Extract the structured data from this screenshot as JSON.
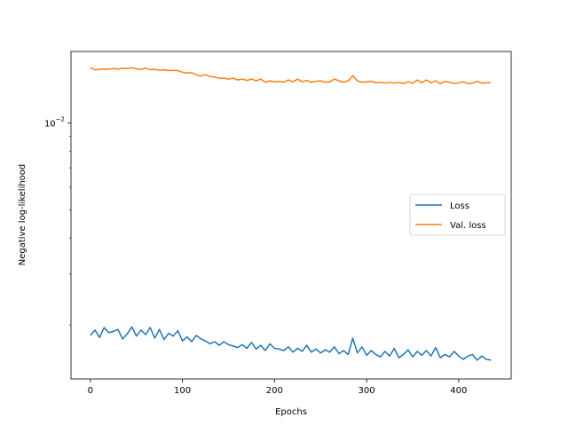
{
  "chart_data": {
    "type": "line",
    "title": "",
    "xlabel": "Epochs",
    "ylabel": "Negative log-likelihood",
    "yscale": "log",
    "xlim": [
      -21,
      457
    ],
    "ylim": [
      0.0013,
      0.0177
    ],
    "x_ticks": [
      {
        "value": 0,
        "label": "0"
      },
      {
        "value": 100,
        "label": "100"
      },
      {
        "value": 200,
        "label": "200"
      },
      {
        "value": 300,
        "label": "300"
      },
      {
        "value": 400,
        "label": "400"
      }
    ],
    "y_ticks": [
      {
        "value": 0.01,
        "base": "10",
        "exponent": "−2"
      }
    ],
    "grid": false,
    "legend_position": "center-right",
    "series": [
      {
        "name": "Loss",
        "color": "#1f77b4",
        "x": [
          0,
          5,
          10,
          15,
          20,
          25,
          30,
          35,
          40,
          45,
          50,
          55,
          60,
          65,
          70,
          75,
          80,
          85,
          90,
          95,
          100,
          105,
          110,
          115,
          120,
          125,
          130,
          135,
          140,
          145,
          150,
          155,
          160,
          165,
          170,
          175,
          180,
          185,
          190,
          195,
          200,
          205,
          210,
          215,
          220,
          225,
          230,
          235,
          240,
          245,
          250,
          255,
          260,
          265,
          270,
          275,
          280,
          285,
          290,
          295,
          300,
          305,
          310,
          315,
          320,
          325,
          330,
          335,
          340,
          345,
          350,
          355,
          360,
          365,
          370,
          375,
          380,
          385,
          390,
          395,
          400,
          405,
          410,
          415,
          420,
          425,
          430,
          435
        ],
        "values": [
          0.00184,
          0.00192,
          0.00181,
          0.00196,
          0.00188,
          0.0019,
          0.00193,
          0.00179,
          0.00186,
          0.00197,
          0.00183,
          0.00192,
          0.00185,
          0.00196,
          0.0018,
          0.00193,
          0.00178,
          0.00187,
          0.00183,
          0.00191,
          0.00176,
          0.00182,
          0.00175,
          0.00184,
          0.00179,
          0.00176,
          0.00172,
          0.00175,
          0.0017,
          0.00175,
          0.00171,
          0.00169,
          0.00167,
          0.00171,
          0.00166,
          0.00174,
          0.00165,
          0.0017,
          0.00163,
          0.00172,
          0.00166,
          0.00165,
          0.00163,
          0.00168,
          0.00161,
          0.00166,
          0.00162,
          0.0017,
          0.00161,
          0.00165,
          0.0016,
          0.00164,
          0.00161,
          0.00168,
          0.00159,
          0.00163,
          0.00158,
          0.0018,
          0.0016,
          0.00168,
          0.00157,
          0.00163,
          0.00158,
          0.00155,
          0.00162,
          0.00156,
          0.00166,
          0.00154,
          0.00158,
          0.00164,
          0.00155,
          0.00162,
          0.00157,
          0.00163,
          0.00156,
          0.00167,
          0.00154,
          0.00158,
          0.00155,
          0.00162,
          0.00156,
          0.00152,
          0.00156,
          0.00158,
          0.00151,
          0.00156,
          0.00152,
          0.00151
        ]
      },
      {
        "name": "Val. loss",
        "color": "#ff7f0e",
        "x": [
          0,
          5,
          10,
          15,
          20,
          25,
          30,
          35,
          40,
          45,
          50,
          55,
          60,
          65,
          70,
          75,
          80,
          85,
          90,
          95,
          100,
          105,
          110,
          115,
          120,
          125,
          130,
          135,
          140,
          145,
          150,
          155,
          160,
          165,
          170,
          175,
          180,
          185,
          190,
          195,
          200,
          205,
          210,
          215,
          220,
          225,
          230,
          235,
          240,
          245,
          250,
          255,
          260,
          265,
          270,
          275,
          280,
          285,
          290,
          295,
          300,
          305,
          310,
          315,
          320,
          325,
          330,
          335,
          340,
          345,
          350,
          355,
          360,
          365,
          370,
          375,
          380,
          385,
          390,
          395,
          400,
          405,
          410,
          415,
          420,
          425,
          430,
          435
        ],
        "values": [
          0.01555,
          0.0153,
          0.01535,
          0.0154,
          0.01538,
          0.01545,
          0.01536,
          0.01548,
          0.01545,
          0.01555,
          0.0154,
          0.01535,
          0.0155,
          0.0153,
          0.01535,
          0.01525,
          0.0153,
          0.0152,
          0.01522,
          0.0152,
          0.015,
          0.0149,
          0.01495,
          0.0147,
          0.01455,
          0.0147,
          0.0145,
          0.01445,
          0.0143,
          0.0143,
          0.0142,
          0.0143,
          0.0141,
          0.0142,
          0.01405,
          0.0142,
          0.014,
          0.0142,
          0.01385,
          0.014,
          0.0139,
          0.01395,
          0.01385,
          0.0141,
          0.0139,
          0.0142,
          0.0139,
          0.01405,
          0.01385,
          0.01395,
          0.014,
          0.01385,
          0.0139,
          0.0142,
          0.014,
          0.01385,
          0.014,
          0.0146,
          0.014,
          0.01385,
          0.0139,
          0.01395,
          0.0138,
          0.01385,
          0.01375,
          0.01385,
          0.01375,
          0.01385,
          0.0137,
          0.0139,
          0.01375,
          0.0141,
          0.0138,
          0.0141,
          0.0138,
          0.014,
          0.0137,
          0.01395,
          0.01385,
          0.0137,
          0.0138,
          0.0139,
          0.0137,
          0.01375,
          0.01395,
          0.01375,
          0.0138,
          0.0138
        ]
      }
    ]
  }
}
